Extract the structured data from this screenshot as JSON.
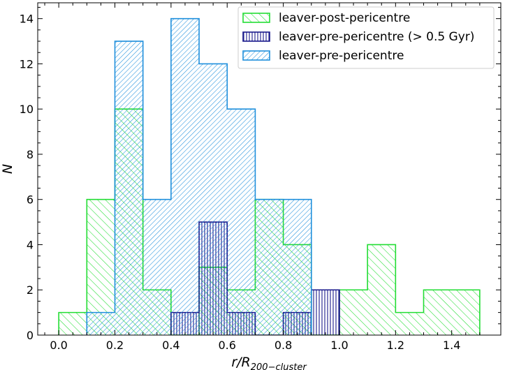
{
  "chart_data": {
    "type": "bar",
    "title": "",
    "xlabel_main": "r/R",
    "xlabel_sub": "200−cluster",
    "ylabel": "N",
    "xlim": [
      -0.075,
      1.575
    ],
    "ylim": [
      0,
      14.7
    ],
    "bin_edges": [
      0.0,
      0.1,
      0.2,
      0.3,
      0.4,
      0.5,
      0.6,
      0.7,
      0.8,
      0.9,
      1.0,
      1.1,
      1.2,
      1.3,
      1.4,
      1.5
    ],
    "x_ticks": [
      0.0,
      0.2,
      0.4,
      0.6,
      0.8,
      1.0,
      1.2,
      1.4
    ],
    "x_tick_labels": [
      "0.0",
      "0.2",
      "0.4",
      "0.6",
      "0.8",
      "1.0",
      "1.2",
      "1.4"
    ],
    "y_ticks": [
      0,
      2,
      4,
      6,
      8,
      10,
      12,
      14
    ],
    "y_tick_labels": [
      "0",
      "2",
      "4",
      "6",
      "8",
      "10",
      "12",
      "14"
    ],
    "grid": false,
    "legend_position": "top-right",
    "series": [
      {
        "name": "leaver-post-pericentre",
        "color": "#22dd33",
        "hatch": "backslash",
        "values": [
          1,
          6,
          10,
          2,
          0,
          3,
          2,
          6,
          4,
          0,
          2,
          4,
          1,
          2,
          2
        ]
      },
      {
        "name": "leaver-pre-pericentre (> 0.5 Gyr)",
        "color": "#1a1a8c",
        "hatch": "vertical",
        "values": [
          0,
          0,
          0,
          0,
          1,
          5,
          1,
          0,
          1,
          2,
          0,
          0,
          0,
          0,
          0
        ]
      },
      {
        "name": "leaver-pre-pericentre",
        "color": "#1f8fdc",
        "hatch": "slash",
        "values": [
          0,
          1,
          13,
          6,
          14,
          12,
          10,
          6,
          6,
          0,
          0,
          0,
          0,
          0,
          0
        ]
      }
    ]
  }
}
